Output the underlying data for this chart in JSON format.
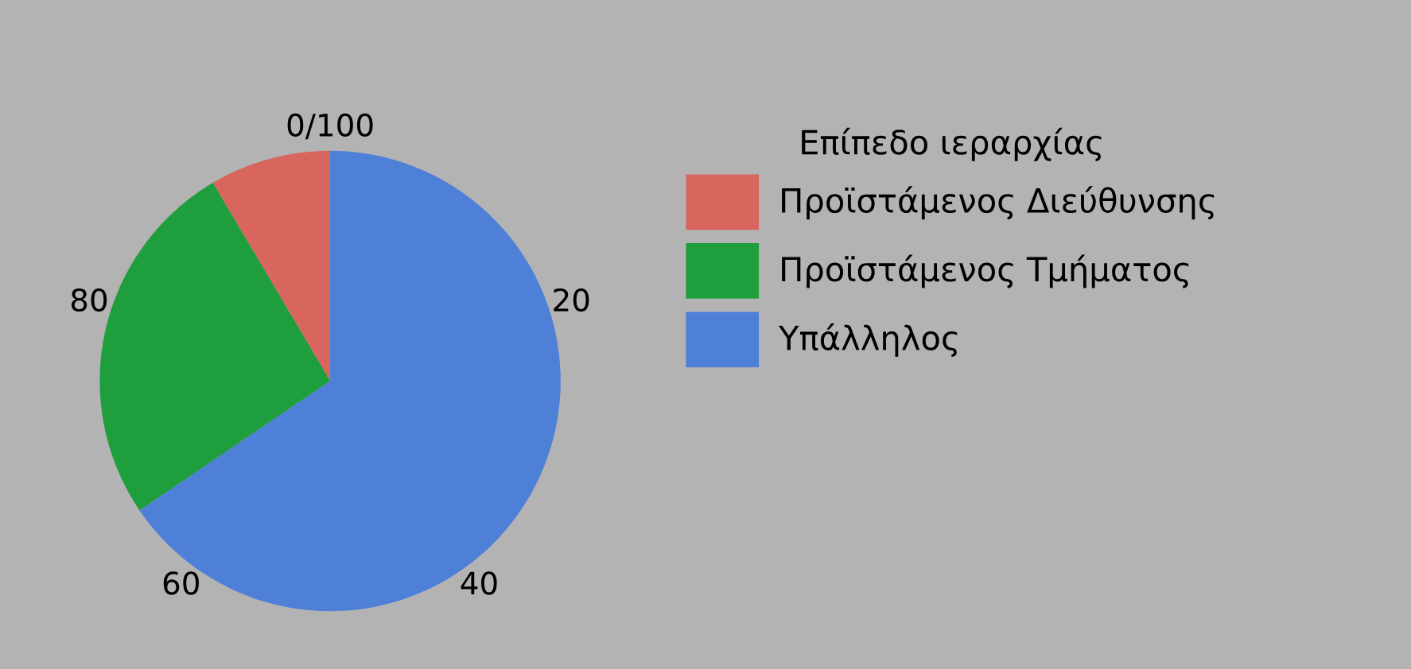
{
  "chart_data": {
    "type": "pie",
    "categories": [
      "Προϊστάμενος Διεύθυνσης",
      "Προϊστάμενος Τμήματος",
      "Υπάλληλος"
    ],
    "values": [
      8.5,
      26,
      65.5
    ],
    "colors": [
      "#d9665e",
      "#1e9e3c",
      "#4f80d8"
    ],
    "legend_title": "Επίπεδο ιεραρχίας",
    "legend": "right",
    "annotations": [
      "0/100",
      "20",
      "40",
      "60",
      "80"
    ]
  }
}
